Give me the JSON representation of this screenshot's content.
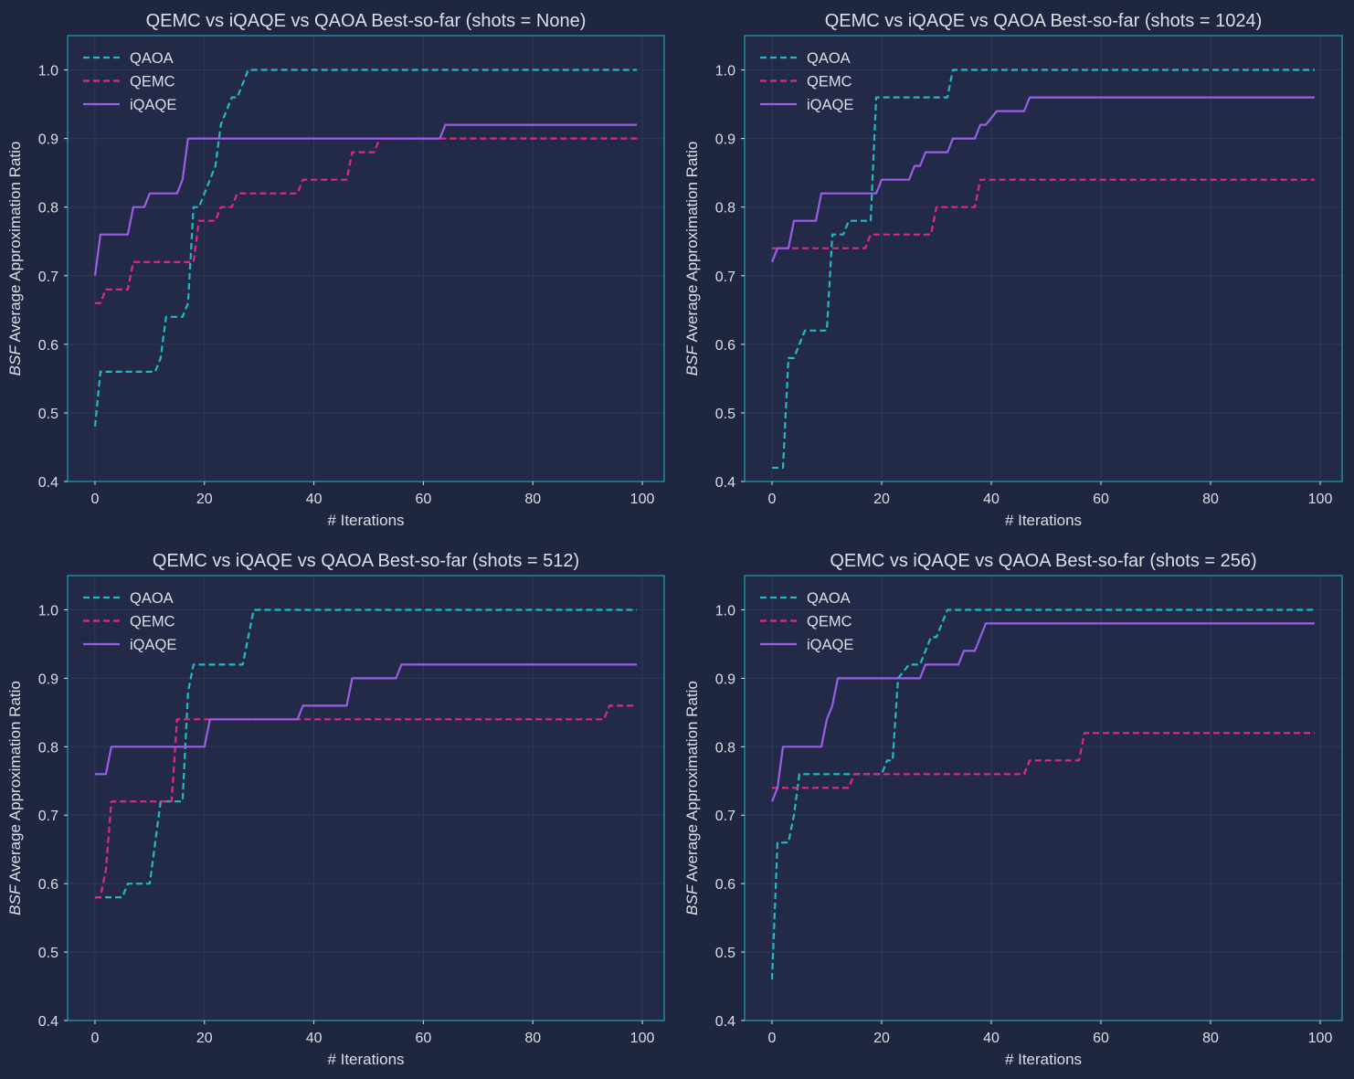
{
  "colors": {
    "background": "#1f2740",
    "plot_background": "#222a47",
    "axes_frame": "#1fb8c4",
    "grid": "#30395a",
    "text": "#dcdfe8",
    "qaoa": "#22b9c4",
    "qemc": "#e0278a",
    "iqaqe": "#9a5ee8"
  },
  "chart_data": [
    {
      "type": "line",
      "title": "QEMC vs iQAQE vs QAOA Best-so-far (shots = None)",
      "xlabel": "# Iterations",
      "ylabel_italic": "BSF",
      "ylabel_rest": " Average Approximation Ratio",
      "xlim": [
        -5,
        104
      ],
      "ylim": [
        0.4,
        1.05
      ],
      "xticks": [
        0,
        20,
        40,
        60,
        80,
        100
      ],
      "yticks": [
        0.4,
        0.5,
        0.6,
        0.7,
        0.8,
        0.9,
        1.0
      ],
      "tick_labels_x": [
        "0",
        "20",
        "40",
        "60",
        "80",
        "100"
      ],
      "tick_labels_y": [
        "0.4",
        "0.5",
        "0.6",
        "0.7",
        "0.8",
        "0.9",
        "1.0"
      ],
      "grid": true,
      "legend": "top-left",
      "series": [
        {
          "name": "QAOA",
          "style": "dashed",
          "color": "#22b9c4",
          "x": [
            0,
            1,
            2,
            11,
            12,
            13,
            14,
            16,
            17,
            18,
            19,
            20,
            21,
            22,
            23,
            24,
            25,
            26,
            27,
            28,
            99
          ],
          "y": [
            0.48,
            0.56,
            0.56,
            0.56,
            0.58,
            0.64,
            0.64,
            0.64,
            0.66,
            0.8,
            0.8,
            0.82,
            0.84,
            0.86,
            0.92,
            0.94,
            0.96,
            0.96,
            0.98,
            1.0,
            1.0
          ]
        },
        {
          "name": "QEMC",
          "style": "dashed",
          "color": "#e0278a",
          "x": [
            0,
            1,
            2,
            6,
            7,
            18,
            19,
            22,
            23,
            25,
            26,
            30,
            31,
            37,
            38,
            46,
            47,
            51,
            52,
            99
          ],
          "y": [
            0.66,
            0.66,
            0.68,
            0.68,
            0.72,
            0.72,
            0.78,
            0.78,
            0.8,
            0.8,
            0.82,
            0.82,
            0.82,
            0.82,
            0.84,
            0.84,
            0.88,
            0.88,
            0.9,
            0.9
          ]
        },
        {
          "name": "iQAQE",
          "style": "solid",
          "color": "#9a5ee8",
          "x": [
            0,
            1,
            6,
            7,
            9,
            10,
            15,
            16,
            17,
            63,
            64,
            99
          ],
          "y": [
            0.7,
            0.76,
            0.76,
            0.8,
            0.8,
            0.82,
            0.82,
            0.84,
            0.9,
            0.9,
            0.92,
            0.92
          ]
        }
      ]
    },
    {
      "type": "line",
      "title": "QEMC vs iQAQE vs QAOA Best-so-far (shots = 1024)",
      "xlabel": "# Iterations",
      "ylabel_italic": "BSF",
      "ylabel_rest": " Average Approximation Ratio",
      "xlim": [
        -5,
        104
      ],
      "ylim": [
        0.4,
        1.05
      ],
      "xticks": [
        0,
        20,
        40,
        60,
        80,
        100
      ],
      "yticks": [
        0.4,
        0.5,
        0.6,
        0.7,
        0.8,
        0.9,
        1.0
      ],
      "tick_labels_x": [
        "0",
        "20",
        "40",
        "60",
        "80",
        "100"
      ],
      "tick_labels_y": [
        "0.4",
        "0.5",
        "0.6",
        "0.7",
        "0.8",
        "0.9",
        "1.0"
      ],
      "grid": true,
      "legend": "top-left",
      "series": [
        {
          "name": "QAOA",
          "style": "dashed",
          "color": "#22b9c4",
          "x": [
            0,
            2,
            3,
            4,
            5,
            6,
            10,
            11,
            12,
            13,
            14,
            18,
            19,
            32,
            33,
            99
          ],
          "y": [
            0.42,
            0.42,
            0.58,
            0.58,
            0.6,
            0.62,
            0.62,
            0.76,
            0.76,
            0.76,
            0.78,
            0.78,
            0.96,
            0.96,
            1.0,
            1.0
          ]
        },
        {
          "name": "QEMC",
          "style": "dashed",
          "color": "#e0278a",
          "x": [
            0,
            17,
            18,
            29,
            30,
            37,
            38,
            99
          ],
          "y": [
            0.74,
            0.74,
            0.76,
            0.76,
            0.8,
            0.8,
            0.84,
            0.84
          ]
        },
        {
          "name": "iQAQE",
          "style": "solid",
          "color": "#9a5ee8",
          "x": [
            0,
            1,
            3,
            4,
            8,
            9,
            19,
            20,
            25,
            26,
            27,
            28,
            32,
            33,
            36,
            37,
            38,
            39,
            41,
            46,
            47,
            99
          ],
          "y": [
            0.72,
            0.74,
            0.74,
            0.78,
            0.78,
            0.82,
            0.82,
            0.84,
            0.84,
            0.86,
            0.86,
            0.88,
            0.88,
            0.9,
            0.9,
            0.9,
            0.92,
            0.92,
            0.94,
            0.94,
            0.96,
            0.96
          ]
        }
      ]
    },
    {
      "type": "line",
      "title": "QEMC vs iQAQE vs QAOA Best-so-far (shots = 512)",
      "xlabel": "# Iterations",
      "ylabel_italic": "BSF",
      "ylabel_rest": " Average Approximation Ratio",
      "xlim": [
        -5,
        104
      ],
      "ylim": [
        0.4,
        1.05
      ],
      "xticks": [
        0,
        20,
        40,
        60,
        80,
        100
      ],
      "yticks": [
        0.4,
        0.5,
        0.6,
        0.7,
        0.8,
        0.9,
        1.0
      ],
      "tick_labels_x": [
        "0",
        "20",
        "40",
        "60",
        "80",
        "100"
      ],
      "tick_labels_y": [
        "0.4",
        "0.5",
        "0.6",
        "0.7",
        "0.8",
        "0.9",
        "1.0"
      ],
      "grid": true,
      "legend": "top-left",
      "series": [
        {
          "name": "QAOA",
          "style": "dashed",
          "color": "#22b9c4",
          "x": [
            0,
            1,
            5,
            6,
            10,
            11,
            12,
            16,
            17,
            18,
            27,
            28,
            29,
            99
          ],
          "y": [
            0.58,
            0.58,
            0.58,
            0.6,
            0.6,
            0.66,
            0.72,
            0.72,
            0.88,
            0.92,
            0.92,
            0.96,
            1.0,
            1.0
          ]
        },
        {
          "name": "QEMC",
          "style": "dashed",
          "color": "#e0278a",
          "x": [
            0,
            1,
            2,
            3,
            13,
            14,
            15,
            93,
            94,
            99
          ],
          "y": [
            0.58,
            0.58,
            0.62,
            0.72,
            0.72,
            0.72,
            0.84,
            0.84,
            0.86,
            0.86
          ]
        },
        {
          "name": "iQAQE",
          "style": "solid",
          "color": "#9a5ee8",
          "x": [
            0,
            2,
            3,
            20,
            21,
            37,
            38,
            46,
            47,
            55,
            56,
            99
          ],
          "y": [
            0.76,
            0.76,
            0.8,
            0.8,
            0.84,
            0.84,
            0.86,
            0.86,
            0.9,
            0.9,
            0.92,
            0.92
          ]
        }
      ]
    },
    {
      "type": "line",
      "title": "QEMC vs iQAQE vs QAOA Best-so-far (shots = 256)",
      "xlabel": "# Iterations",
      "ylabel_italic": "BSF",
      "ylabel_rest": " Average Approximation Ratio",
      "xlim": [
        -5,
        104
      ],
      "ylim": [
        0.4,
        1.05
      ],
      "xticks": [
        0,
        20,
        40,
        60,
        80,
        100
      ],
      "yticks": [
        0.4,
        0.5,
        0.6,
        0.7,
        0.8,
        0.9,
        1.0
      ],
      "tick_labels_x": [
        "0",
        "20",
        "40",
        "60",
        "80",
        "100"
      ],
      "tick_labels_y": [
        "0.4",
        "0.5",
        "0.6",
        "0.7",
        "0.8",
        "0.9",
        "1.0"
      ],
      "grid": true,
      "legend": "top-left",
      "series": [
        {
          "name": "QAOA",
          "style": "dashed",
          "color": "#22b9c4",
          "x": [
            0,
            1,
            3,
            4,
            5,
            20,
            21,
            22,
            23,
            25,
            27,
            28,
            29,
            30,
            31,
            32,
            99
          ],
          "y": [
            0.46,
            0.66,
            0.66,
            0.7,
            0.76,
            0.76,
            0.78,
            0.78,
            0.9,
            0.92,
            0.92,
            0.94,
            0.96,
            0.96,
            0.98,
            1.0,
            1.0
          ]
        },
        {
          "name": "QEMC",
          "style": "dashed",
          "color": "#e0278a",
          "x": [
            0,
            14,
            15,
            46,
            47,
            56,
            57,
            99
          ],
          "y": [
            0.74,
            0.74,
            0.76,
            0.76,
            0.78,
            0.78,
            0.82,
            0.82
          ]
        },
        {
          "name": "iQAQE",
          "style": "solid",
          "color": "#9a5ee8",
          "x": [
            0,
            1,
            2,
            9,
            10,
            11,
            12,
            27,
            28,
            34,
            35,
            37,
            38,
            39,
            99
          ],
          "y": [
            0.72,
            0.74,
            0.8,
            0.8,
            0.84,
            0.86,
            0.9,
            0.9,
            0.92,
            0.92,
            0.94,
            0.94,
            0.96,
            0.98,
            0.98
          ]
        }
      ]
    }
  ]
}
